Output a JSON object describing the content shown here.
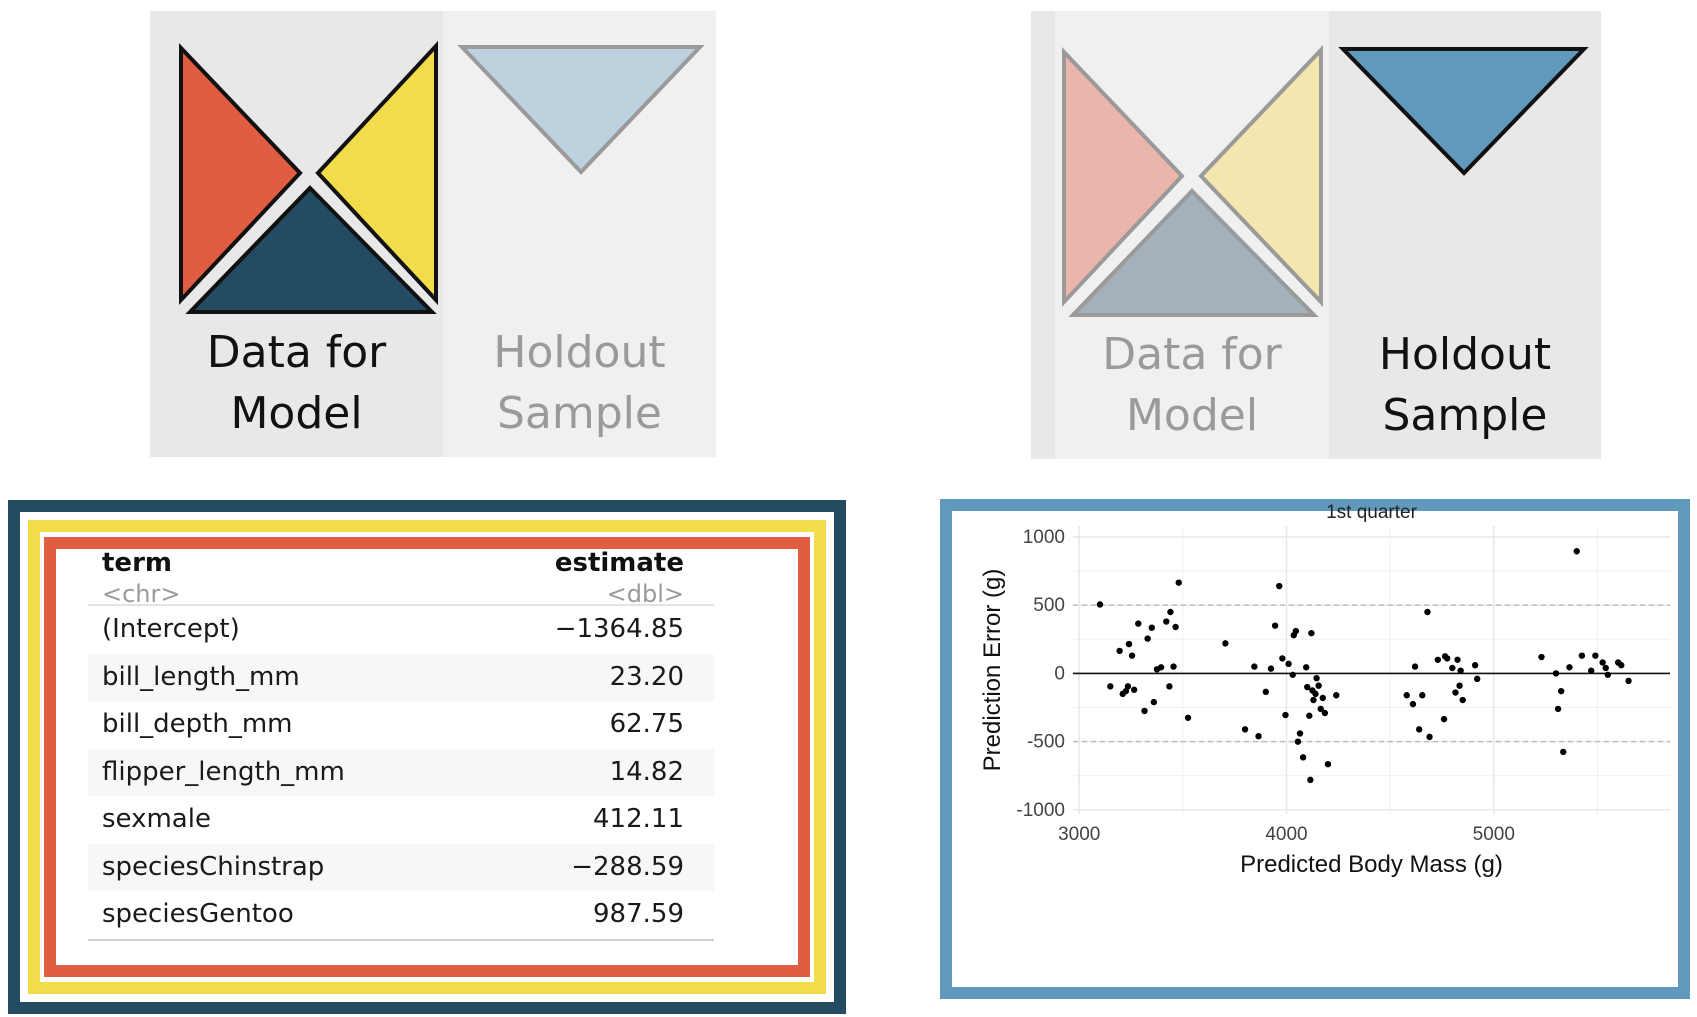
{
  "panels": [
    {
      "id": "training-selected",
      "model_label": [
        "Data for",
        "Model"
      ],
      "holdout_label": [
        "Holdout",
        "Sample"
      ]
    },
    {
      "id": "holdout-selected",
      "model_label": [
        "Data for",
        "Model"
      ],
      "holdout_label": [
        "Holdout",
        "Sample"
      ]
    }
  ],
  "colors": {
    "red": "#e05d42",
    "yellow": "#f2dc4a",
    "navy": "#234b61",
    "blue": "#6199bd",
    "red_faded": "#ecb5ac",
    "yellow_faded": "#f3e6ae",
    "navy_faded": "#a4b1ba",
    "blue_faded": "#bdd2de",
    "bg_active": "#e9e8e8",
    "bg_inactive": "#f1f0f0"
  },
  "table": {
    "headers": {
      "term": "term",
      "estimate": "estimate",
      "term_type": "<chr>",
      "estimate_type": "<dbl>"
    },
    "rows": [
      {
        "term": "(Intercept)",
        "estimate": "−1364.85"
      },
      {
        "term": "bill_length_mm",
        "estimate": "23.20"
      },
      {
        "term": "bill_depth_mm",
        "estimate": "62.75"
      },
      {
        "term": "flipper_length_mm",
        "estimate": "14.82"
      },
      {
        "term": "sexmale",
        "estimate": "412.11"
      },
      {
        "term": "speciesChinstrap",
        "estimate": "−288.59"
      },
      {
        "term": "speciesGentoo",
        "estimate": "987.59"
      }
    ]
  },
  "chart_data": {
    "type": "scatter",
    "title": "1st quarter",
    "xlabel": "Predicted Body Mass (g)",
    "ylabel": "Prediction Error (g)",
    "xlim": [
      2970,
      5850
    ],
    "ylim": [
      -1030,
      1080
    ],
    "x_ticks": [
      "3000",
      "4000",
      "5000"
    ],
    "x_tick_values": [
      3000,
      4000,
      5000
    ],
    "y_ticks": [
      "1000",
      "500",
      "0",
      "-500",
      "-1000"
    ],
    "y_tick_values": [
      1000,
      500,
      0,
      -500,
      -1000
    ],
    "reference_lines": {
      "solid": [
        0
      ],
      "dashed": [
        500,
        -500
      ]
    },
    "grid": true,
    "points": [
      [
        3100,
        505
      ],
      [
        3150,
        -95
      ],
      [
        3195,
        165
      ],
      [
        3210,
        -150
      ],
      [
        3225,
        -130
      ],
      [
        3235,
        -95
      ],
      [
        3240,
        215
      ],
      [
        3255,
        130
      ],
      [
        3265,
        -120
      ],
      [
        3285,
        365
      ],
      [
        3315,
        -275
      ],
      [
        3330,
        255
      ],
      [
        3350,
        335
      ],
      [
        3360,
        -210
      ],
      [
        3375,
        30
      ],
      [
        3395,
        45
      ],
      [
        3420,
        380
      ],
      [
        3435,
        -95
      ],
      [
        3440,
        450
      ],
      [
        3455,
        50
      ],
      [
        3465,
        340
      ],
      [
        3480,
        665
      ],
      [
        3525,
        -325
      ],
      [
        3705,
        220
      ],
      [
        3800,
        -410
      ],
      [
        3845,
        50
      ],
      [
        3865,
        -460
      ],
      [
        3900,
        -135
      ],
      [
        3925,
        35
      ],
      [
        3945,
        350
      ],
      [
        3965,
        640
      ],
      [
        3980,
        110
      ],
      [
        3995,
        -305
      ],
      [
        4010,
        70
      ],
      [
        4030,
        -10
      ],
      [
        4035,
        280
      ],
      [
        4045,
        310
      ],
      [
        4055,
        -500
      ],
      [
        4065,
        -440
      ],
      [
        4080,
        -615
      ],
      [
        4095,
        45
      ],
      [
        4100,
        -100
      ],
      [
        4110,
        -310
      ],
      [
        4115,
        -780
      ],
      [
        4120,
        295
      ],
      [
        4125,
        -125
      ],
      [
        4130,
        -195
      ],
      [
        4140,
        -150
      ],
      [
        4145,
        -35
      ],
      [
        4155,
        -90
      ],
      [
        4165,
        -260
      ],
      [
        4175,
        -180
      ],
      [
        4185,
        -290
      ],
      [
        4200,
        -665
      ],
      [
        4240,
        -160
      ],
      [
        4580,
        -160
      ],
      [
        4610,
        -225
      ],
      [
        4620,
        50
      ],
      [
        4640,
        -410
      ],
      [
        4655,
        -160
      ],
      [
        4680,
        450
      ],
      [
        4690,
        -465
      ],
      [
        4730,
        100
      ],
      [
        4760,
        -335
      ],
      [
        4765,
        125
      ],
      [
        4775,
        110
      ],
      [
        4800,
        40
      ],
      [
        4815,
        -140
      ],
      [
        4825,
        100
      ],
      [
        4835,
        -90
      ],
      [
        4840,
        20
      ],
      [
        4850,
        -195
      ],
      [
        4910,
        60
      ],
      [
        4920,
        -40
      ],
      [
        5230,
        120
      ],
      [
        5300,
        0
      ],
      [
        5310,
        -260
      ],
      [
        5325,
        -130
      ],
      [
        5335,
        -575
      ],
      [
        5365,
        45
      ],
      [
        5400,
        895
      ],
      [
        5425,
        130
      ],
      [
        5470,
        20
      ],
      [
        5490,
        130
      ],
      [
        5525,
        80
      ],
      [
        5540,
        40
      ],
      [
        5550,
        -10
      ],
      [
        5600,
        80
      ],
      [
        5615,
        60
      ],
      [
        5650,
        -55
      ]
    ]
  }
}
